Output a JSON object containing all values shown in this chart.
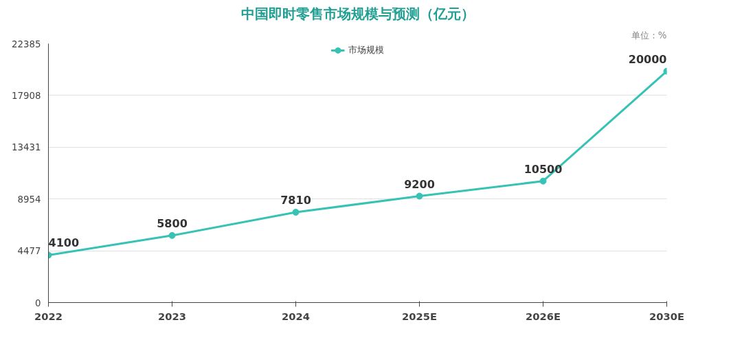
{
  "chart_data": {
    "type": "line",
    "title": "中国即时零售市场规模与预测（亿元）",
    "annotations": [
      "单位：%"
    ],
    "categories": [
      "2022",
      "2023",
      "2024",
      "2025E",
      "2026E",
      "2030E"
    ],
    "series": [
      {
        "name": "市场规模",
        "color": "#36c2b4",
        "values": [
          4100,
          5800,
          7810,
          9200,
          10500,
          20000
        ]
      }
    ],
    "ylim": [
      0,
      22385
    ],
    "yticks": [
      0,
      4477,
      8954,
      13431,
      17908,
      22385
    ],
    "grid": "y",
    "legend": "top",
    "marker": "circle",
    "line_style": "solid",
    "data_labels": true
  }
}
